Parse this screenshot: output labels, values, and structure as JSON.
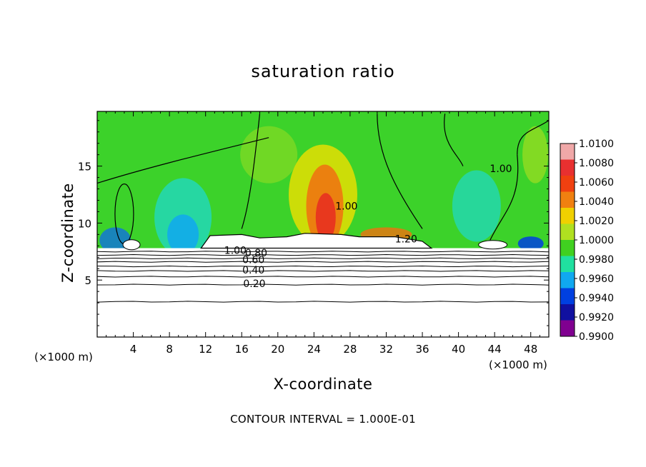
{
  "chart_data": {
    "type": "heatmap",
    "title": "saturation ratio",
    "xlabel": "X-coordinate",
    "ylabel": "Z-coordinate",
    "x_unit_left": "(×1000 m)",
    "x_unit_right": "(×1000 m)",
    "xlim": [
      0,
      50
    ],
    "ylim": [
      0,
      19.8
    ],
    "x_ticks": [
      4,
      8,
      12,
      16,
      20,
      24,
      28,
      32,
      36,
      40,
      44,
      48
    ],
    "y_ticks": [
      5,
      10,
      15
    ],
    "colorbar": {
      "min": 0.99,
      "max": 1.01,
      "ticks": [
        "1.0100",
        "1.0080",
        "1.0060",
        "1.0040",
        "1.0020",
        "1.0000",
        "0.9980",
        "0.9960",
        "0.9940",
        "0.9920",
        "0.9900"
      ],
      "colors": [
        "#f0a8a8",
        "#e83030",
        "#f04010",
        "#f08010",
        "#f0d000",
        "#b0e020",
        "#40d020",
        "#20e0a0",
        "#10a8f0",
        "#0040e0",
        "#1010a0",
        "#800090"
      ]
    },
    "contour_labels": [
      {
        "text": "1.00",
        "x": 27.6,
        "z": 11.5
      },
      {
        "text": "1.00",
        "x": 44.7,
        "z": 14.8
      },
      {
        "text": "1.20",
        "x": 34.2,
        "z": 8.6
      },
      {
        "text": "1.00",
        "x": 15.3,
        "z": 7.6
      },
      {
        "text": "0.80",
        "x": 17.6,
        "z": 7.4
      },
      {
        "text": "0.60",
        "x": 17.3,
        "z": 6.8
      },
      {
        "text": "0.40",
        "x": 17.3,
        "z": 5.9
      },
      {
        "text": "0.20",
        "x": 17.4,
        "z": 4.7
      }
    ],
    "contour_interval_text": "CONTOUR INTERVAL = 1.000E-01",
    "grid": false
  }
}
